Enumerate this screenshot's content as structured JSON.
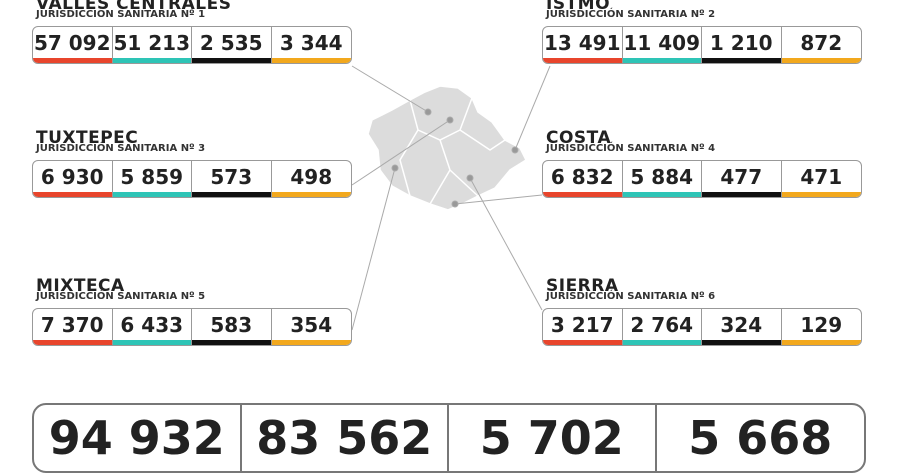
{
  "regions": [
    {
      "name": "VALLES CENTRALES",
      "subtitle": "JURISDICCIÓN SANITARIA Nº 1",
      "values": [
        "57 092",
        "51 213",
        "2 535",
        "3 344"
      ]
    },
    {
      "name": "ISTMO",
      "subtitle": "JURISDICCIÓN SANITARIA Nº 2",
      "values": [
        "13 491",
        "11 409",
        "1 210",
        "872"
      ]
    },
    {
      "name": "TUXTEPEC",
      "subtitle": "JURISDICCIÓN SANITARIA Nº 3",
      "values": [
        "6 930",
        "5 859",
        "573",
        "498"
      ]
    },
    {
      "name": "COSTA",
      "subtitle": "JURISDICCIÓN SANITARIA Nº 4",
      "values": [
        "6 832",
        "5 884",
        "477",
        "471"
      ]
    },
    {
      "name": "MIXTECA",
      "subtitle": "JURISDICCIÓN SANITARIA Nº 5",
      "values": [
        "7 370",
        "6 433",
        "583",
        "354"
      ]
    },
    {
      "name": "SIERRA",
      "subtitle": "JURISDICCIÓN SANITARIA Nº 6",
      "values": [
        "3 217",
        "2 764",
        "324",
        "129"
      ]
    }
  ],
  "totals": [
    "94 932",
    "83 562",
    "5 702",
    "5 668"
  ]
}
